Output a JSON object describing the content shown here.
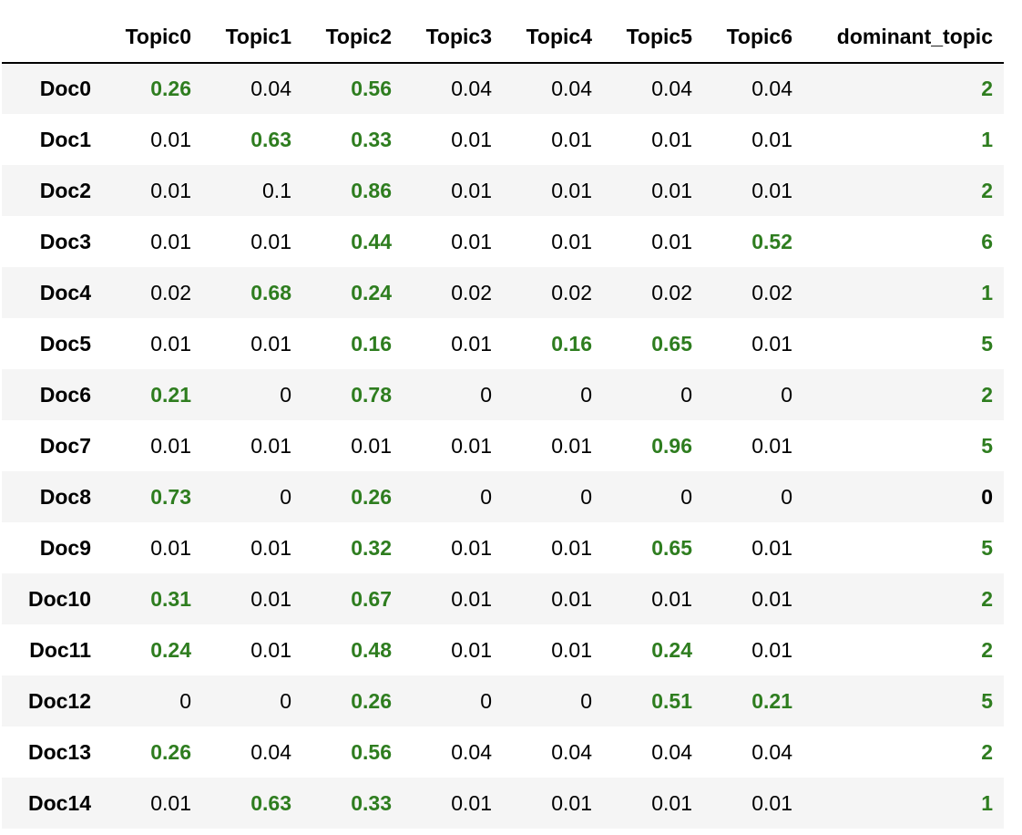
{
  "colors": {
    "highlight": "#2e7d1f",
    "row_stripe": "#f5f5f5",
    "text": "#000000"
  },
  "table": {
    "index_header": "",
    "columns": [
      "Topic0",
      "Topic1",
      "Topic2",
      "Topic3",
      "Topic4",
      "Topic5",
      "Topic6",
      "dominant_topic"
    ],
    "rows": [
      {
        "label": "Doc0",
        "cells": [
          "0.26",
          "0.04",
          "0.56",
          "0.04",
          "0.04",
          "0.04",
          "0.04"
        ],
        "highlight": [
          true,
          false,
          true,
          false,
          false,
          false,
          false
        ],
        "dominant": "2",
        "dominant_highlight": true
      },
      {
        "label": "Doc1",
        "cells": [
          "0.01",
          "0.63",
          "0.33",
          "0.01",
          "0.01",
          "0.01",
          "0.01"
        ],
        "highlight": [
          false,
          true,
          true,
          false,
          false,
          false,
          false
        ],
        "dominant": "1",
        "dominant_highlight": true
      },
      {
        "label": "Doc2",
        "cells": [
          "0.01",
          "0.1",
          "0.86",
          "0.01",
          "0.01",
          "0.01",
          "0.01"
        ],
        "highlight": [
          false,
          false,
          true,
          false,
          false,
          false,
          false
        ],
        "dominant": "2",
        "dominant_highlight": true
      },
      {
        "label": "Doc3",
        "cells": [
          "0.01",
          "0.01",
          "0.44",
          "0.01",
          "0.01",
          "0.01",
          "0.52"
        ],
        "highlight": [
          false,
          false,
          true,
          false,
          false,
          false,
          true
        ],
        "dominant": "6",
        "dominant_highlight": true
      },
      {
        "label": "Doc4",
        "cells": [
          "0.02",
          "0.68",
          "0.24",
          "0.02",
          "0.02",
          "0.02",
          "0.02"
        ],
        "highlight": [
          false,
          true,
          true,
          false,
          false,
          false,
          false
        ],
        "dominant": "1",
        "dominant_highlight": true
      },
      {
        "label": "Doc5",
        "cells": [
          "0.01",
          "0.01",
          "0.16",
          "0.01",
          "0.16",
          "0.65",
          "0.01"
        ],
        "highlight": [
          false,
          false,
          true,
          false,
          true,
          true,
          false
        ],
        "dominant": "5",
        "dominant_highlight": true
      },
      {
        "label": "Doc6",
        "cells": [
          "0.21",
          "0",
          "0.78",
          "0",
          "0",
          "0",
          "0"
        ],
        "highlight": [
          true,
          false,
          true,
          false,
          false,
          false,
          false
        ],
        "dominant": "2",
        "dominant_highlight": true
      },
      {
        "label": "Doc7",
        "cells": [
          "0.01",
          "0.01",
          "0.01",
          "0.01",
          "0.01",
          "0.96",
          "0.01"
        ],
        "highlight": [
          false,
          false,
          false,
          false,
          false,
          true,
          false
        ],
        "dominant": "5",
        "dominant_highlight": true
      },
      {
        "label": "Doc8",
        "cells": [
          "0.73",
          "0",
          "0.26",
          "0",
          "0",
          "0",
          "0"
        ],
        "highlight": [
          true,
          false,
          true,
          false,
          false,
          false,
          false
        ],
        "dominant": "0",
        "dominant_highlight": false
      },
      {
        "label": "Doc9",
        "cells": [
          "0.01",
          "0.01",
          "0.32",
          "0.01",
          "0.01",
          "0.65",
          "0.01"
        ],
        "highlight": [
          false,
          false,
          true,
          false,
          false,
          true,
          false
        ],
        "dominant": "5",
        "dominant_highlight": true
      },
      {
        "label": "Doc10",
        "cells": [
          "0.31",
          "0.01",
          "0.67",
          "0.01",
          "0.01",
          "0.01",
          "0.01"
        ],
        "highlight": [
          true,
          false,
          true,
          false,
          false,
          false,
          false
        ],
        "dominant": "2",
        "dominant_highlight": true
      },
      {
        "label": "Doc11",
        "cells": [
          "0.24",
          "0.01",
          "0.48",
          "0.01",
          "0.01",
          "0.24",
          "0.01"
        ],
        "highlight": [
          true,
          false,
          true,
          false,
          false,
          true,
          false
        ],
        "dominant": "2",
        "dominant_highlight": true
      },
      {
        "label": "Doc12",
        "cells": [
          "0",
          "0",
          "0.26",
          "0",
          "0",
          "0.51",
          "0.21"
        ],
        "highlight": [
          false,
          false,
          true,
          false,
          false,
          true,
          true
        ],
        "dominant": "5",
        "dominant_highlight": true
      },
      {
        "label": "Doc13",
        "cells": [
          "0.26",
          "0.04",
          "0.56",
          "0.04",
          "0.04",
          "0.04",
          "0.04"
        ],
        "highlight": [
          true,
          false,
          true,
          false,
          false,
          false,
          false
        ],
        "dominant": "2",
        "dominant_highlight": true
      },
      {
        "label": "Doc14",
        "cells": [
          "0.01",
          "0.63",
          "0.33",
          "0.01",
          "0.01",
          "0.01",
          "0.01"
        ],
        "highlight": [
          false,
          true,
          true,
          false,
          false,
          false,
          false
        ],
        "dominant": "1",
        "dominant_highlight": true
      }
    ]
  }
}
